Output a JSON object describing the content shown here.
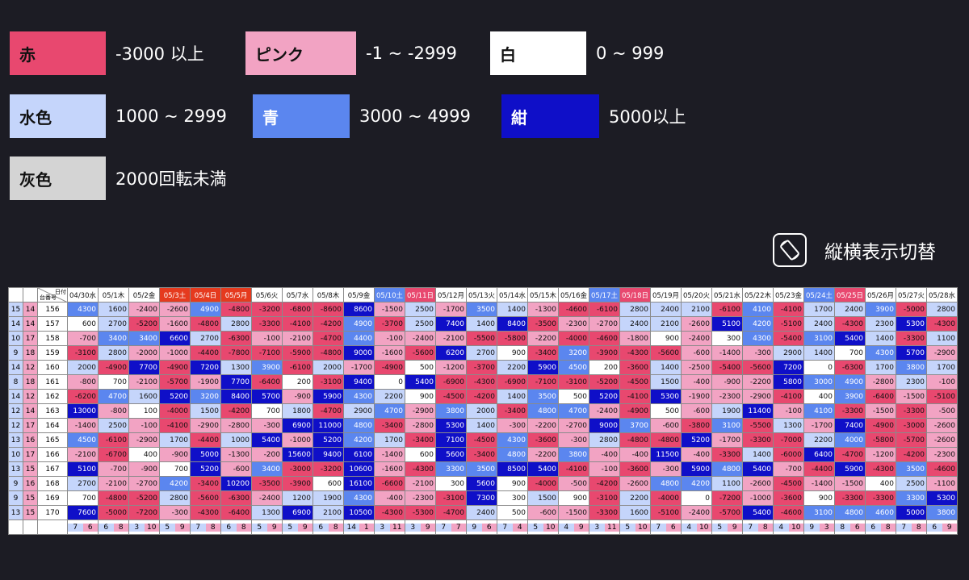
{
  "legend": [
    {
      "label": "赤",
      "range": "-3000 以上",
      "color": "#e8486f",
      "text_color": "#111111"
    },
    {
      "label": "ピンク",
      "range": "-1 ~ -2999",
      "color": "#f2a3c3",
      "text_color": "#111111"
    },
    {
      "label": "白",
      "range": "0 ~ 999",
      "color": "#ffffff",
      "text_color": "#111111"
    },
    {
      "label": "水色",
      "range": "1000 ~ 2999",
      "color": "#c5d5fb",
      "text_color": "#111111"
    },
    {
      "label": "青",
      "range": "3000 ~ 4999",
      "color": "#5b86ef",
      "text_color": "#ffffff"
    },
    {
      "label": "紺",
      "range": "5000以上",
      "color": "#0f0fc8",
      "text_color": "#ffffff"
    },
    {
      "label": "灰色",
      "range": "2000回転未満",
      "color": "#d4d4d4",
      "text_color": "#111111"
    }
  ],
  "rotate": {
    "label": "縦横表示切替",
    "icon": "screen-rotation-icon"
  },
  "table": {
    "corner_top": "日付",
    "corner_bottom": "台番号",
    "dates": [
      {
        "label": "04/30水",
        "type": "normal"
      },
      {
        "label": "05/1木",
        "type": "normal"
      },
      {
        "label": "05/2金",
        "type": "normal"
      },
      {
        "label": "05/3土",
        "type": "holiday"
      },
      {
        "label": "05/4日",
        "type": "holiday"
      },
      {
        "label": "05/5月",
        "type": "holiday"
      },
      {
        "label": "05/6火",
        "type": "normal"
      },
      {
        "label": "05/7水",
        "type": "normal"
      },
      {
        "label": "05/8木",
        "type": "normal"
      },
      {
        "label": "05/9金",
        "type": "normal"
      },
      {
        "label": "05/10土",
        "type": "sat"
      },
      {
        "label": "05/11日",
        "type": "sun"
      },
      {
        "label": "05/12月",
        "type": "normal"
      },
      {
        "label": "05/13火",
        "type": "normal"
      },
      {
        "label": "05/14水",
        "type": "normal"
      },
      {
        "label": "05/15木",
        "type": "normal"
      },
      {
        "label": "05/16金",
        "type": "normal"
      },
      {
        "label": "05/17土",
        "type": "sat"
      },
      {
        "label": "05/18日",
        "type": "sun"
      },
      {
        "label": "05/19月",
        "type": "normal"
      },
      {
        "label": "05/20火",
        "type": "normal"
      },
      {
        "label": "05/21水",
        "type": "normal"
      },
      {
        "label": "05/22木",
        "type": "normal"
      },
      {
        "label": "05/23金",
        "type": "normal"
      },
      {
        "label": "05/24土",
        "type": "sat"
      },
      {
        "label": "05/25日",
        "type": "sun"
      },
      {
        "label": "05/26月",
        "type": "normal"
      },
      {
        "label": "05/27火",
        "type": "normal"
      },
      {
        "label": "05/28水",
        "type": "normal"
      }
    ],
    "rows": [
      {
        "a": "15",
        "b": "14",
        "machine": "156",
        "values": [
          4300,
          1600,
          -2400,
          -2600,
          4900,
          -4800,
          -3200,
          -6800,
          -8600,
          8600,
          -1500,
          2500,
          -1700,
          3500,
          1400,
          -1300,
          -4600,
          -6100,
          2800,
          2400,
          2100,
          -6100,
          4100,
          -4100,
          1700,
          2400,
          3900,
          -5000,
          2800
        ]
      },
      {
        "a": "14",
        "b": "14",
        "machine": "157",
        "values": [
          600,
          2700,
          -5200,
          -1600,
          -4800,
          2800,
          -3300,
          -4100,
          -4200,
          4900,
          -3700,
          2500,
          7400,
          1400,
          8400,
          -3500,
          -2300,
          -2700,
          2400,
          2100,
          -2600,
          5100,
          4200,
          -5100,
          2400,
          -4300,
          2300,
          5300,
          -4300
        ]
      },
      {
        "a": "10",
        "b": "17",
        "machine": "158",
        "values": [
          -700,
          3400,
          3400,
          6600,
          2700,
          -6300,
          -100,
          -2100,
          -4700,
          4400,
          -100,
          -2400,
          -2100,
          -5500,
          -5800,
          -2200,
          -4000,
          -4600,
          -1800,
          900,
          -2400,
          300,
          4300,
          -5400,
          3100,
          5400,
          1400,
          -3300,
          1100
        ]
      },
      {
        "a": "9",
        "b": "18",
        "machine": "159",
        "values": [
          -3100,
          2800,
          -2000,
          -1000,
          -4400,
          -7800,
          -7100,
          -5900,
          -4800,
          9000,
          -1600,
          -5600,
          6200,
          2700,
          900,
          -3400,
          3200,
          -3900,
          -4300,
          -5600,
          -600,
          -1400,
          -300,
          2900,
          1400,
          700,
          4300,
          5700,
          -2900
        ]
      },
      {
        "a": "14",
        "b": "12",
        "machine": "160",
        "values": [
          2000,
          -4900,
          7700,
          -4900,
          7200,
          1300,
          3900,
          -6100,
          2000,
          -1700,
          -4900,
          500,
          -1200,
          -3700,
          2200,
          5900,
          4500,
          200,
          -3600,
          1400,
          -2500,
          -5400,
          -5600,
          7200,
          0,
          -6300,
          1700,
          3800,
          1700
        ]
      },
      {
        "a": "8",
        "b": "18",
        "machine": "161",
        "values": [
          -800,
          700,
          -2100,
          -5700,
          -1900,
          7700,
          -6400,
          200,
          -3100,
          9400,
          0,
          5400,
          -6900,
          -4300,
          -6900,
          -7100,
          -3100,
          -5200,
          -4500,
          1500,
          -400,
          -900,
          -2200,
          5800,
          3000,
          4900,
          -2800,
          2300,
          -100
        ]
      },
      {
        "a": "14",
        "b": "12",
        "machine": "162",
        "values": [
          -6200,
          4700,
          1600,
          5200,
          3200,
          8400,
          5700,
          -900,
          5900,
          4300,
          2200,
          900,
          -4500,
          -4200,
          1400,
          3500,
          500,
          5200,
          -4100,
          5300,
          -1900,
          -2300,
          -2900,
          -4100,
          400,
          3900,
          -6400,
          -1500,
          -5100
        ]
      },
      {
        "a": "12",
        "b": "14",
        "machine": "163",
        "values": [
          13000,
          -800,
          100,
          -4000,
          1500,
          -4200,
          700,
          1800,
          -4700,
          2900,
          4700,
          -2900,
          3800,
          2000,
          -3400,
          4800,
          4700,
          -2400,
          -4900,
          500,
          -600,
          1900,
          11400,
          -100,
          4100,
          -3300,
          -1500,
          -3300,
          -500
        ]
      },
      {
        "a": "12",
        "b": "17",
        "machine": "164",
        "values": [
          -1400,
          2500,
          -100,
          -4100,
          -2900,
          -2800,
          -300,
          6900,
          11000,
          4800,
          -3400,
          -2800,
          5300,
          1400,
          -300,
          -2200,
          -2700,
          9000,
          3700,
          -600,
          -3800,
          3100,
          -5500,
          1300,
          -1700,
          7400,
          -4900,
          -3000,
          -2600
        ]
      },
      {
        "a": "13",
        "b": "16",
        "machine": "165",
        "values": [
          4500,
          -6100,
          -2900,
          1700,
          -4400,
          1000,
          5400,
          -1000,
          5200,
          4200,
          1700,
          -3400,
          7100,
          -4500,
          4300,
          -3600,
          -300,
          2800,
          -4800,
          -4800,
          5200,
          -1700,
          -3300,
          -7000,
          2200,
          4000,
          -5800,
          -5700,
          -2600
        ]
      },
      {
        "a": "10",
        "b": "17",
        "machine": "166",
        "values": [
          -2100,
          -6700,
          400,
          -900,
          5000,
          -1300,
          -200,
          15600,
          9400,
          6100,
          -1400,
          600,
          5600,
          -3400,
          4800,
          -2200,
          3800,
          -400,
          -400,
          11500,
          -400,
          -3300,
          1400,
          -6000,
          6400,
          -4700,
          -1200,
          -4200,
          -2300
        ]
      },
      {
        "a": "13",
        "b": "15",
        "machine": "167",
        "values": [
          5100,
          -700,
          -900,
          700,
          5200,
          -600,
          3400,
          -3000,
          -3200,
          10600,
          -1600,
          -4300,
          3300,
          3500,
          8500,
          5400,
          -4100,
          -100,
          -3600,
          -300,
          5900,
          4800,
          5400,
          -700,
          -4400,
          5900,
          -4300,
          3500,
          -4600
        ]
      },
      {
        "a": "9",
        "b": "16",
        "machine": "168",
        "values": [
          2700,
          -2100,
          -2700,
          4200,
          -3400,
          10200,
          -3500,
          -3900,
          600,
          16100,
          -6600,
          -2100,
          300,
          5600,
          900,
          -4000,
          -500,
          -4200,
          -2600,
          4800,
          4200,
          1100,
          -2600,
          -4500,
          -1400,
          -1500,
          400,
          2500,
          -1100
        ]
      },
      {
        "a": "9",
        "b": "15",
        "machine": "169",
        "values": [
          700,
          -4800,
          -5200,
          2800,
          -5600,
          -6300,
          -2400,
          1200,
          1900,
          4300,
          -400,
          -2300,
          -3100,
          7300,
          300,
          1500,
          900,
          -3100,
          2200,
          -4000,
          0,
          -7200,
          -1000,
          -3600,
          900,
          -3300,
          -3300,
          3300,
          5300
        ]
      },
      {
        "a": "13",
        "b": "15",
        "machine": "170",
        "values": [
          7600,
          -5000,
          -7200,
          -300,
          -4300,
          -6400,
          1300,
          6900,
          2100,
          10500,
          -4300,
          -5300,
          -4700,
          2400,
          500,
          -600,
          -1500,
          -3300,
          1600,
          -5100,
          -2400,
          -5700,
          5400,
          -4600,
          3100,
          4800,
          4600,
          5000,
          3800
        ]
      }
    ],
    "counts": [
      [
        7,
        6
      ],
      [
        6,
        8
      ],
      [
        3,
        10
      ],
      [
        5,
        9
      ],
      [
        7,
        8
      ],
      [
        6,
        8
      ],
      [
        5,
        9
      ],
      [
        5,
        9
      ],
      [
        6,
        8
      ],
      [
        14,
        1
      ],
      [
        3,
        11
      ],
      [
        3,
        9
      ],
      [
        7,
        7
      ],
      [
        9,
        6
      ],
      [
        7,
        4
      ],
      [
        5,
        10
      ],
      [
        4,
        9
      ],
      [
        3,
        11
      ],
      [
        5,
        10
      ],
      [
        7,
        6
      ],
      [
        4,
        10
      ],
      [
        5,
        9
      ],
      [
        7,
        8
      ],
      [
        4,
        10
      ],
      [
        9,
        3
      ],
      [
        8,
        6
      ],
      [
        6,
        8
      ],
      [
        7,
        8
      ],
      [
        6,
        9
      ]
    ]
  }
}
